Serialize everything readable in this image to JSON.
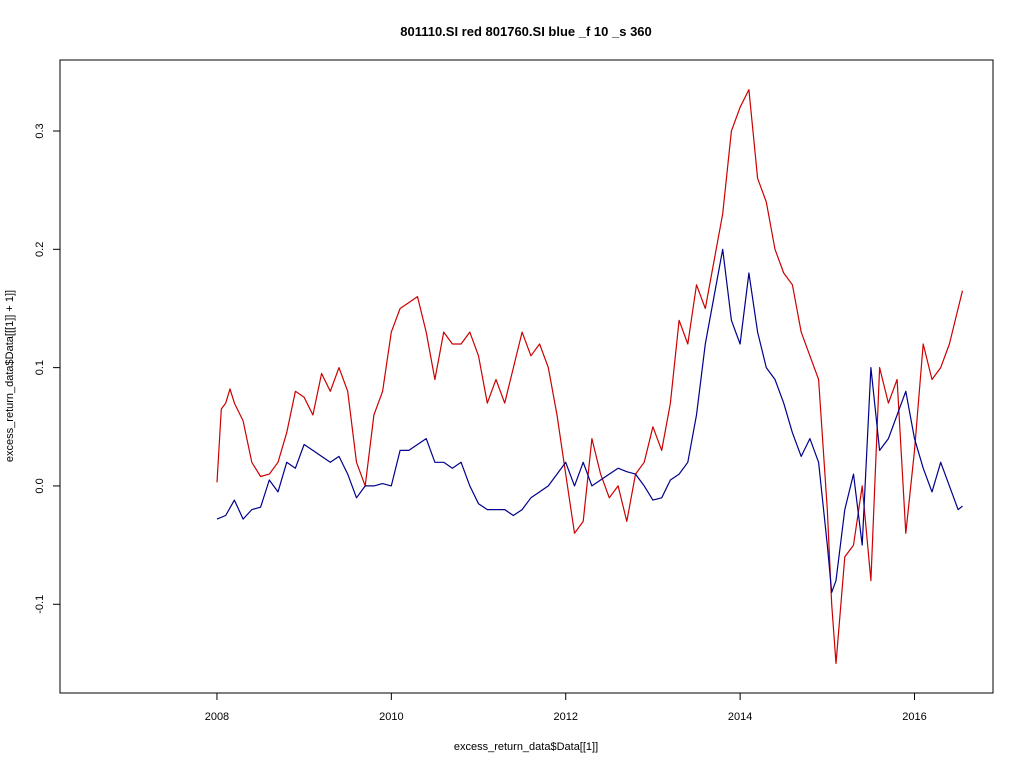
{
  "chart_data": {
    "type": "line",
    "title": "801110.SI red 801760.SI blue _f 10 _s 360",
    "xlabel": "excess_return_data$Data[[1]]",
    "ylabel": "excess_return_data$Data[[[1]] + 1]]",
    "xlim": [
      2006.2,
      2016.9
    ],
    "ylim": [
      -0.175,
      0.36
    ],
    "x_ticks": [
      2008,
      2010,
      2012,
      2014,
      2016
    ],
    "x_tick_labels": [
      "2008",
      "2010",
      "2012",
      "2014",
      "2016"
    ],
    "y_ticks": [
      -0.1,
      0.0,
      0.1,
      0.2,
      0.3
    ],
    "y_tick_labels": [
      "-0.1",
      "0.0",
      "0.1",
      "0.2",
      "0.3"
    ],
    "grid": false,
    "legend": "none",
    "series": [
      {
        "color": "#cc0000",
        "x": [
          2008.0,
          2008.05,
          2008.1,
          2008.15,
          2008.2,
          2008.3,
          2008.4,
          2008.5,
          2008.6,
          2008.7,
          2008.8,
          2008.9,
          2009.0,
          2009.1,
          2009.2,
          2009.3,
          2009.4,
          2009.5,
          2009.6,
          2009.7,
          2009.8,
          2009.9,
          2010.0,
          2010.1,
          2010.2,
          2010.3,
          2010.4,
          2010.5,
          2010.6,
          2010.7,
          2010.8,
          2010.9,
          2011.0,
          2011.1,
          2011.2,
          2011.3,
          2011.4,
          2011.5,
          2011.6,
          2011.7,
          2011.8,
          2011.9,
          2012.0,
          2012.1,
          2012.2,
          2012.3,
          2012.4,
          2012.5,
          2012.6,
          2012.7,
          2012.8,
          2012.9,
          2013.0,
          2013.1,
          2013.2,
          2013.3,
          2013.4,
          2013.5,
          2013.6,
          2013.7,
          2013.8,
          2013.9,
          2014.0,
          2014.1,
          2014.2,
          2014.3,
          2014.4,
          2014.5,
          2014.6,
          2014.7,
          2014.8,
          2014.9,
          2015.0,
          2015.05,
          2015.1,
          2015.2,
          2015.3,
          2015.4,
          2015.5,
          2015.6,
          2015.7,
          2015.8,
          2015.9,
          2016.0,
          2016.1,
          2016.2,
          2016.3,
          2016.4,
          2016.5,
          2016.55
        ],
        "y": [
          0.003,
          0.065,
          0.07,
          0.082,
          0.07,
          0.055,
          0.02,
          0.008,
          0.01,
          0.02,
          0.045,
          0.08,
          0.075,
          0.06,
          0.095,
          0.08,
          0.1,
          0.08,
          0.02,
          0.0,
          0.06,
          0.08,
          0.13,
          0.15,
          0.155,
          0.16,
          0.13,
          0.09,
          0.13,
          0.12,
          0.12,
          0.13,
          0.11,
          0.07,
          0.09,
          0.07,
          0.1,
          0.13,
          0.11,
          0.12,
          0.1,
          0.06,
          0.01,
          -0.04,
          -0.03,
          0.04,
          0.01,
          -0.01,
          0.0,
          -0.03,
          0.01,
          0.02,
          0.05,
          0.03,
          0.07,
          0.14,
          0.12,
          0.17,
          0.15,
          0.19,
          0.23,
          0.3,
          0.32,
          0.335,
          0.26,
          0.24,
          0.2,
          0.18,
          0.17,
          0.13,
          0.11,
          0.09,
          -0.02,
          -0.1,
          -0.15,
          -0.06,
          -0.05,
          0.0,
          -0.08,
          0.1,
          0.07,
          0.09,
          -0.04,
          0.03,
          0.12,
          0.09,
          0.1,
          0.12,
          0.15,
          0.165
        ]
      },
      {
        "color": "#00008b",
        "x": [
          2008.0,
          2008.1,
          2008.2,
          2008.3,
          2008.4,
          2008.5,
          2008.6,
          2008.7,
          2008.8,
          2008.9,
          2009.0,
          2009.1,
          2009.2,
          2009.3,
          2009.4,
          2009.5,
          2009.6,
          2009.7,
          2009.8,
          2009.9,
          2010.0,
          2010.1,
          2010.2,
          2010.3,
          2010.4,
          2010.5,
          2010.6,
          2010.7,
          2010.8,
          2010.9,
          2011.0,
          2011.1,
          2011.2,
          2011.3,
          2011.4,
          2011.5,
          2011.6,
          2011.7,
          2011.8,
          2011.9,
          2012.0,
          2012.1,
          2012.2,
          2012.3,
          2012.4,
          2012.5,
          2012.6,
          2012.7,
          2012.8,
          2012.9,
          2013.0,
          2013.1,
          2013.2,
          2013.3,
          2013.4,
          2013.5,
          2013.6,
          2013.7,
          2013.8,
          2013.9,
          2014.0,
          2014.1,
          2014.2,
          2014.3,
          2014.4,
          2014.5,
          2014.6,
          2014.7,
          2014.8,
          2014.9,
          2015.0,
          2015.05,
          2015.1,
          2015.2,
          2015.3,
          2015.4,
          2015.5,
          2015.6,
          2015.7,
          2015.8,
          2015.9,
          2016.0,
          2016.1,
          2016.2,
          2016.3,
          2016.4,
          2016.5,
          2016.55
        ],
        "y": [
          -0.028,
          -0.025,
          -0.012,
          -0.028,
          -0.02,
          -0.018,
          0.005,
          -0.005,
          0.02,
          0.015,
          0.035,
          0.03,
          0.025,
          0.02,
          0.025,
          0.01,
          -0.01,
          0.0,
          0.0,
          0.002,
          0.0,
          0.03,
          0.03,
          0.035,
          0.04,
          0.02,
          0.02,
          0.015,
          0.02,
          0.0,
          -0.015,
          -0.02,
          -0.02,
          -0.02,
          -0.025,
          -0.02,
          -0.01,
          -0.005,
          0.0,
          0.01,
          0.02,
          0.0,
          0.02,
          0.0,
          0.005,
          0.01,
          0.015,
          0.012,
          0.01,
          0.0,
          -0.012,
          -0.01,
          0.005,
          0.01,
          0.02,
          0.06,
          0.12,
          0.16,
          0.2,
          0.14,
          0.12,
          0.18,
          0.13,
          0.1,
          0.09,
          0.07,
          0.045,
          0.025,
          0.04,
          0.02,
          -0.05,
          -0.09,
          -0.08,
          -0.02,
          0.01,
          -0.05,
          0.1,
          0.03,
          0.04,
          0.06,
          0.08,
          0.04,
          0.015,
          -0.005,
          0.02,
          0.0,
          -0.02,
          -0.017
        ]
      }
    ]
  }
}
